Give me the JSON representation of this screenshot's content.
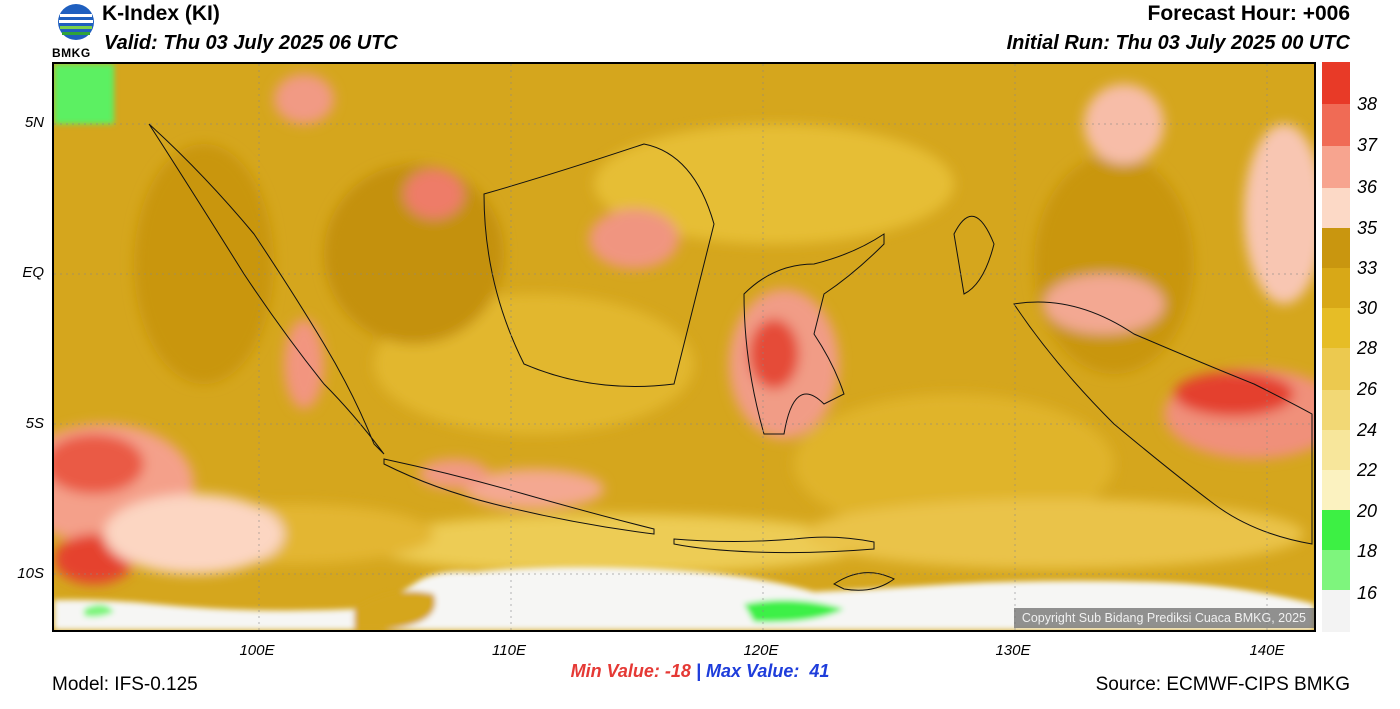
{
  "header": {
    "title": "K-Index (KI)",
    "valid": "Valid: Thu 03 July 2025 06 UTC",
    "forecast_hour": "Forecast Hour: +006",
    "initial_run": "Initial Run: Thu 03 July 2025 00 UTC"
  },
  "logo": {
    "text": "BMKG",
    "icon": "bmkg-logo-icon"
  },
  "map": {
    "lat_labels": [
      "5N",
      "EQ",
      "5S",
      "10S"
    ],
    "lon_labels": [
      "100E",
      "110E",
      "120E",
      "130E",
      "140E"
    ],
    "copyright": "Copyright Sub Bidang Prediksi Cuaca BMKG, 2025"
  },
  "colorbar": {
    "labels": [
      "38",
      "37",
      "36",
      "35",
      "33",
      "30",
      "28",
      "26",
      "24",
      "22",
      "20",
      "18",
      "16"
    ],
    "colors": [
      "#e83a27",
      "#f06b55",
      "#f7a48f",
      "#fcd9c6",
      "#c9960f",
      "#d8a817",
      "#e6bd26",
      "#ecc94f",
      "#f2d875",
      "#f7e69b",
      "#fbf2c0",
      "#3df044",
      "#7ef57d",
      "#b7f7b3"
    ]
  },
  "stats": {
    "min": "Min Value: -18",
    "separator": "|",
    "max": "Max Value:  41"
  },
  "footer": {
    "model": "Model: IFS-0.125",
    "source": "Source: ECMWF-CIPS BMKG"
  }
}
